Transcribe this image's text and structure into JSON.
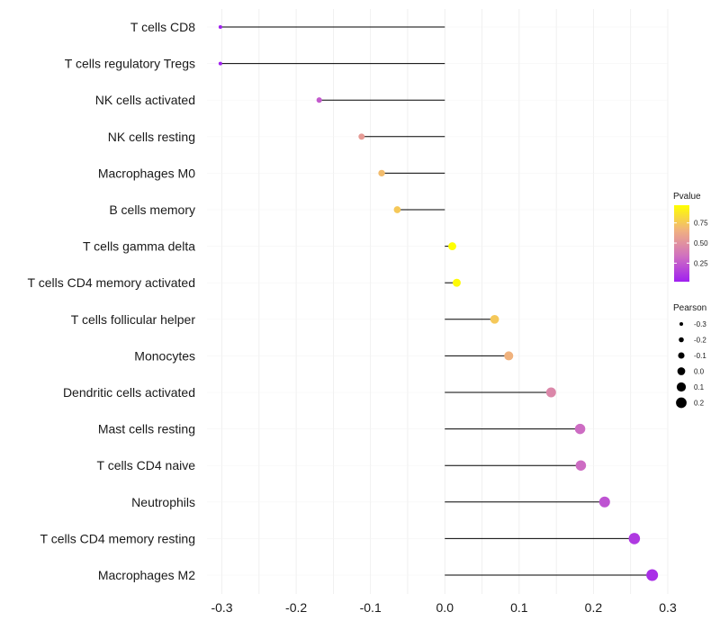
{
  "chart_data": {
    "type": "lollipop",
    "title": "",
    "xlabel": "",
    "ylabel": "",
    "xlim": [
      -0.32,
      0.3
    ],
    "x_ticks": [
      {
        "value": -0.3,
        "label": "-0.3"
      },
      {
        "value": -0.2,
        "label": "-0.2"
      },
      {
        "value": -0.1,
        "label": "-0.1"
      },
      {
        "value": 0.0,
        "label": "0.0"
      },
      {
        "value": 0.1,
        "label": "0.1"
      },
      {
        "value": 0.2,
        "label": "0.2"
      },
      {
        "value": 0.3,
        "label": "0.3"
      }
    ],
    "categories": [
      {
        "label": "T cells CD8",
        "pearson": -0.302,
        "pvalue": 0.02
      },
      {
        "label": "T cells regulatory  Tregs",
        "pearson": -0.302,
        "pvalue": 0.02
      },
      {
        "label": "NK cells activated",
        "pearson": -0.169,
        "pvalue": 0.25
      },
      {
        "label": "NK cells resting",
        "pearson": -0.112,
        "pvalue": 0.55
      },
      {
        "label": "Macrophages M0",
        "pearson": -0.085,
        "pvalue": 0.7
      },
      {
        "label": "B cells memory",
        "pearson": -0.064,
        "pvalue": 0.75
      },
      {
        "label": "T cells gamma delta",
        "pearson": 0.01,
        "pvalue": 0.97
      },
      {
        "label": "T cells CD4 memory activated",
        "pearson": 0.016,
        "pvalue": 0.95
      },
      {
        "label": "T cells follicular helper",
        "pearson": 0.067,
        "pvalue": 0.75
      },
      {
        "label": "Monocytes",
        "pearson": 0.086,
        "pvalue": 0.66
      },
      {
        "label": "Dendritic cells activated",
        "pearson": 0.143,
        "pvalue": 0.45
      },
      {
        "label": "Mast cells resting",
        "pearson": 0.182,
        "pvalue": 0.32
      },
      {
        "label": "T cells CD4 naive",
        "pearson": 0.183,
        "pvalue": 0.32
      },
      {
        "label": "Neutrophils",
        "pearson": 0.215,
        "pvalue": 0.22
      },
      {
        "label": "T cells CD4 memory resting",
        "pearson": 0.255,
        "pvalue": 0.12
      },
      {
        "label": "Macrophages M2",
        "pearson": 0.279,
        "pvalue": 0.08
      }
    ],
    "legend_color": {
      "title": "Pvalue",
      "placement": "right",
      "range": [
        0.02,
        0.97
      ],
      "ticks": [
        {
          "value": 0.25,
          "label": "0.25"
        },
        {
          "value": 0.5,
          "label": "0.50"
        },
        {
          "value": 0.75,
          "label": "0.75"
        }
      ],
      "colors": [
        "#a020f0",
        "#d070c0",
        "#f0b080",
        "#ffff00"
      ]
    },
    "legend_size": {
      "title": "Pearson",
      "placement": "right",
      "range": [
        -0.302,
        0.279
      ],
      "entries": [
        {
          "value": -0.3,
          "label": "-0.3"
        },
        {
          "value": -0.2,
          "label": "-0.2"
        },
        {
          "value": -0.1,
          "label": "-0.1"
        },
        {
          "value": 0.0,
          "label": "0.0"
        },
        {
          "value": 0.1,
          "label": "0.1"
        },
        {
          "value": 0.2,
          "label": "0.2"
        }
      ]
    },
    "grid": true
  }
}
